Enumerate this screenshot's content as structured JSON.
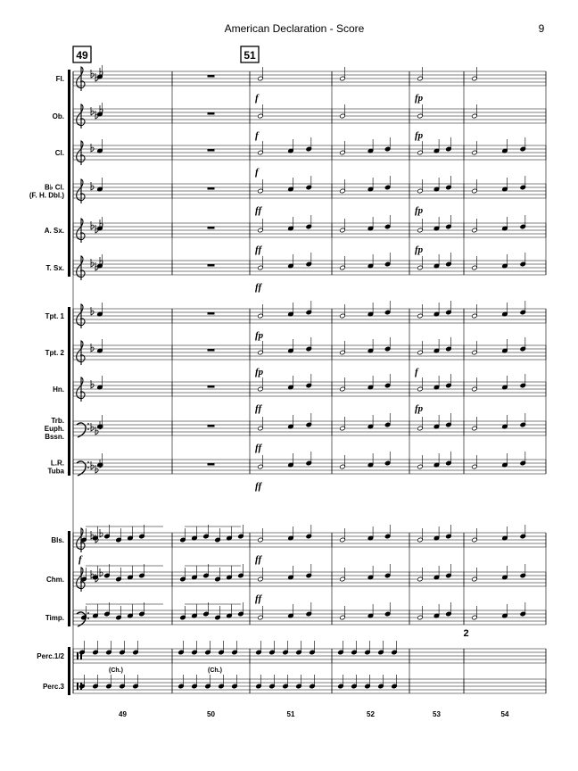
{
  "header": {
    "title": "American Declaration - Score",
    "page": "9"
  },
  "rehearsal": [
    "49",
    "51"
  ],
  "measures": [
    "49",
    "50",
    "51",
    "52",
    "53",
    "54"
  ],
  "staves": [
    {
      "name": [
        "Fl."
      ],
      "dynamics": [
        null,
        null,
        "f",
        null,
        "fp",
        null
      ]
    },
    {
      "name": [
        "Ob."
      ],
      "dynamics": [
        null,
        null,
        "f",
        null,
        "fp",
        null
      ]
    },
    {
      "name": [
        "Cl."
      ],
      "dynamics": [
        null,
        null,
        "f",
        null,
        null,
        null
      ]
    },
    {
      "name": [
        "B♭ Cl.",
        "(F. H. Dbl.)"
      ],
      "dynamics": [
        null,
        null,
        "ff",
        null,
        "fp",
        null
      ]
    },
    {
      "name": [
        "A. Sx."
      ],
      "dynamics": [
        null,
        null,
        "ff",
        null,
        "fp",
        null
      ]
    },
    {
      "name": [
        "T. Sx."
      ],
      "dynamics": [
        null,
        null,
        "ff",
        null,
        null,
        null
      ]
    },
    {
      "name": [
        "Tpt. 1"
      ],
      "dynamics": [
        null,
        null,
        "fp",
        null,
        null,
        null
      ]
    },
    {
      "name": [
        "Tpt. 2"
      ],
      "dynamics": [
        null,
        null,
        "fp",
        null,
        "f",
        null
      ]
    },
    {
      "name": [
        "Hn."
      ],
      "dynamics": [
        null,
        null,
        "ff",
        null,
        "fp",
        null
      ]
    },
    {
      "name": [
        "Trb.",
        "Euph.",
        "Bssn."
      ],
      "dynamics": [
        null,
        null,
        "ff",
        null,
        null,
        null
      ]
    },
    {
      "name": [
        "L.R.",
        "Tuba"
      ],
      "dynamics": [
        null,
        null,
        "ff",
        null,
        null,
        null
      ]
    },
    {
      "name": [
        "Bls."
      ],
      "dynamics": [
        "f",
        null,
        "ff",
        null,
        null,
        null
      ]
    },
    {
      "name": [
        "Chm."
      ],
      "dynamics": [
        null,
        null,
        "ff",
        null,
        null,
        null
      ]
    },
    {
      "name": [
        "Timp."
      ],
      "dynamics": [
        null,
        null,
        null,
        null,
        null,
        null
      ]
    },
    {
      "name": [
        "Perc.1/2"
      ],
      "dynamics": [
        null,
        null,
        null,
        null,
        "2",
        null
      ]
    },
    {
      "name": [
        "Perc.3"
      ],
      "dynamics": [
        "(Ch.)",
        "(Ch.)",
        null,
        null,
        null,
        null
      ]
    }
  ]
}
